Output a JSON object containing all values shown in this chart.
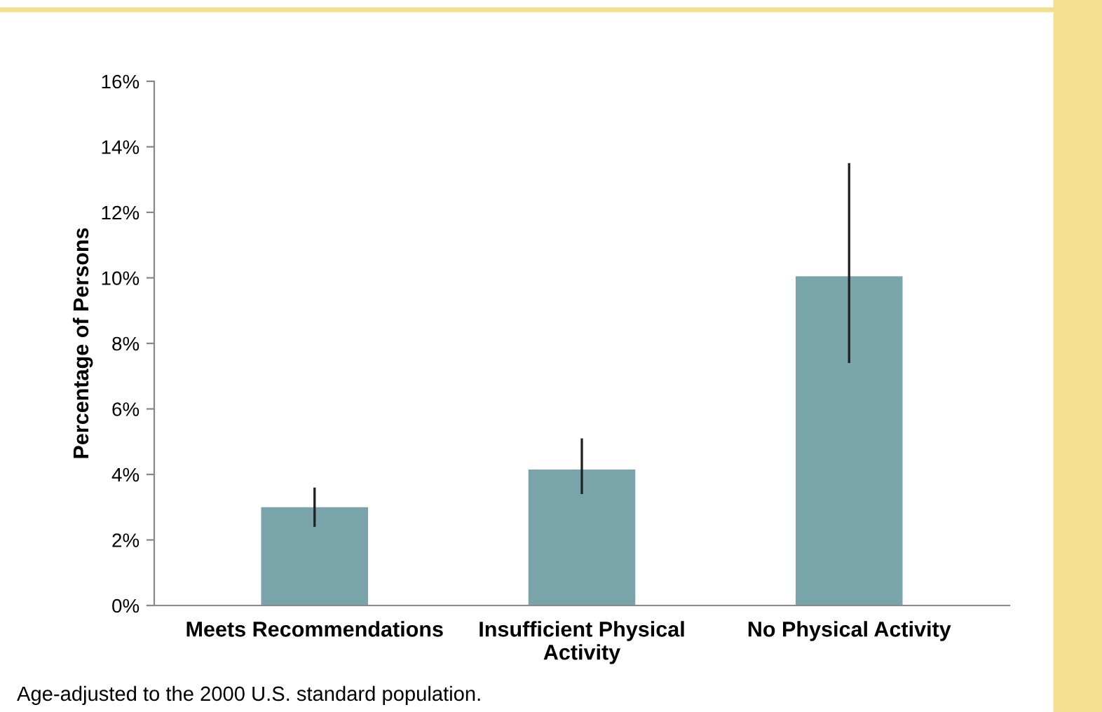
{
  "chart_data": {
    "type": "bar",
    "ylabel": "Percentage of Persons",
    "categories": [
      "Meets Recommendations",
      "Insufficient Physical\nActivity",
      "No Physical Activity"
    ],
    "values": [
      3.0,
      4.15,
      10.05
    ],
    "errors": [
      [
        2.4,
        3.6
      ],
      [
        3.4,
        5.1
      ],
      [
        7.4,
        13.5
      ]
    ],
    "color": "#78a4aa",
    "ylim": [
      0,
      16
    ],
    "yticks": [
      {
        "value": 0,
        "label": "0%"
      },
      {
        "value": 2,
        "label": "2%"
      },
      {
        "value": 4,
        "label": "4%"
      },
      {
        "value": 6,
        "label": "6%"
      },
      {
        "value": 8,
        "label": "8%"
      },
      {
        "value": 10,
        "label": "10%"
      },
      {
        "value": 12,
        "label": "12%"
      },
      {
        "value": 14,
        "label": "14%"
      },
      {
        "value": 16,
        "label": "16%"
      }
    ],
    "grid": false,
    "annotations": [
      "Age-adjusted to the 2000 U.S. standard population."
    ]
  }
}
